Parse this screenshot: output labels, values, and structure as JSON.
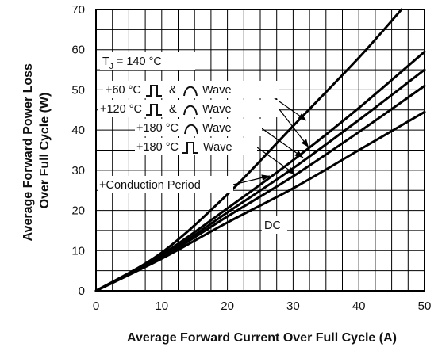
{
  "chart_data": {
    "type": "line",
    "xlabel": "Average Forward Current Over Full Cycle (A)",
    "ylabel": [
      "Average Forward Power Loss",
      "Over Full Cycle (W)"
    ],
    "xlim": [
      0,
      50
    ],
    "ylim": [
      0,
      70
    ],
    "x_ticks": [
      0,
      10,
      20,
      30,
      40,
      50
    ],
    "y_ticks": [
      0,
      10,
      20,
      30,
      40,
      50,
      60,
      70
    ],
    "grid": true,
    "grid_minor_x": 2.5,
    "grid_minor_y": 5,
    "annotations": {
      "tj_prefix": "T",
      "tj_sub": "J",
      "tj_value": " = 140 °C",
      "line_60": "+60 °C",
      "line_120": "+120 °C",
      "amp": "&",
      "wave": "Wave",
      "line_180_sine": "+180 °C",
      "line_180_square": "+180 °C",
      "conduction": "+Conduction Period",
      "dc": "DC"
    },
    "series": [
      {
        "x": [
          0,
          10,
          20,
          30,
          40,
          46.5
        ],
        "y": [
          0,
          9.5,
          24,
          41,
          58,
          70
        ]
      },
      {
        "x": [
          0,
          10,
          20,
          30,
          40,
          50
        ],
        "y": [
          0,
          9,
          20.5,
          32.5,
          45.5,
          59.5
        ]
      },
      {
        "x": [
          0,
          10,
          20,
          30,
          40,
          50
        ],
        "y": [
          0,
          8.5,
          19.5,
          30.5,
          42.5,
          55
        ]
      },
      {
        "x": [
          0,
          10,
          20,
          30,
          40,
          50
        ],
        "y": [
          0,
          8.3,
          18.5,
          28.5,
          39.5,
          51
        ]
      },
      {
        "x": [
          0,
          10,
          20,
          30,
          40,
          50
        ],
        "y": [
          0,
          8,
          17,
          25.5,
          35,
          44.5
        ]
      }
    ]
  }
}
